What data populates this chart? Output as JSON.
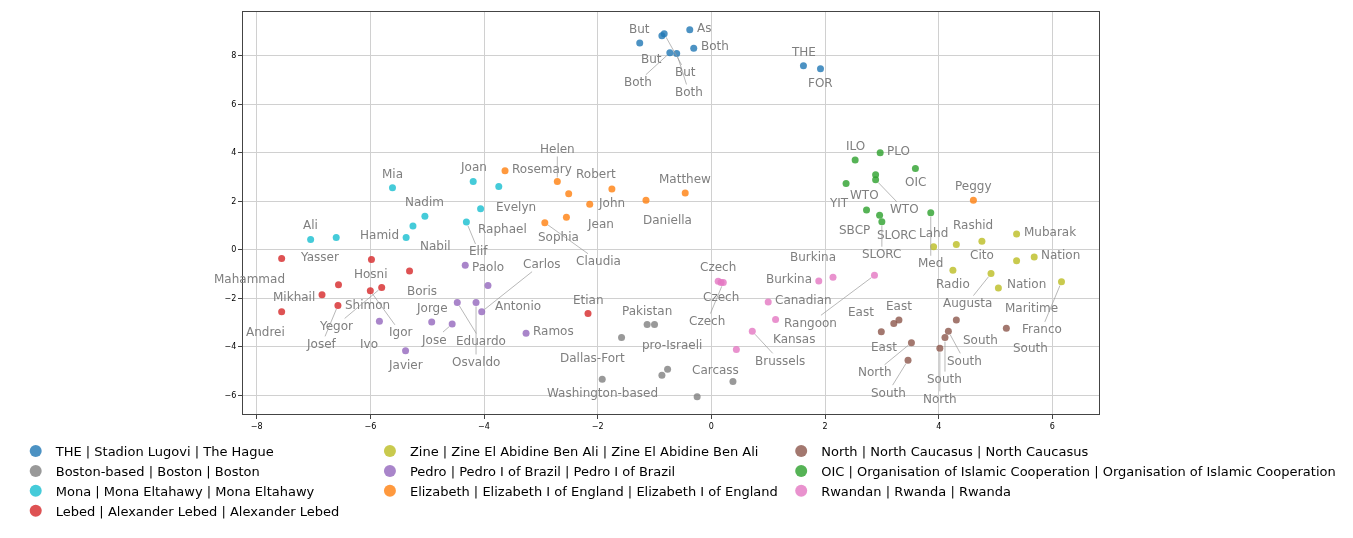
{
  "chart_data": {
    "type": "scatter",
    "xlim": [
      -8.24,
      6.82
    ],
    "ylim": [
      -6.78,
      9.8
    ],
    "xticks": [
      -8,
      -6,
      -4,
      -2,
      0,
      2,
      4,
      6
    ],
    "yticks": [
      -6,
      -4,
      -2,
      0,
      2,
      4,
      6,
      8
    ],
    "grid": true,
    "legend": "bottom",
    "marker": "circle",
    "series": [
      {
        "name": "THE | Stadion Lugovi | The Hague",
        "color": "#1f77b4",
        "x": [
          -1.26,
          -0.87,
          -0.83,
          -0.38,
          -0.73,
          -0.61,
          -0.31,
          1.62,
          1.92
        ],
        "values": [
          8.52,
          8.82,
          8.9,
          9.07,
          8.12,
          8.09,
          8.31,
          7.58,
          7.46
        ]
      },
      {
        "name": "Boston-based | Boston | Boston",
        "color": "#7f7f7f",
        "x": [
          -1.13,
          -1.0,
          -1.58,
          -1.92,
          -0.87,
          -0.77,
          0.38,
          -0.25
        ],
        "values": [
          -3.09,
          -3.09,
          -3.63,
          -5.35,
          -5.18,
          -4.93,
          -5.44,
          -6.07
        ]
      },
      {
        "name": "Mona | Mona Eltahawy | Mona Eltahawy",
        "color": "#17becf",
        "x": [
          -5.61,
          -4.19,
          -3.74,
          -4.06,
          -5.04,
          -5.25,
          -4.31,
          -5.37,
          -7.05,
          -6.6
        ],
        "values": [
          2.55,
          2.81,
          2.6,
          1.69,
          1.38,
          0.97,
          1.14,
          0.5,
          0.42,
          0.5
        ]
      },
      {
        "name": "Lebed | Alexander Lebed | Alexander Lebed",
        "color": "#d62728",
        "x": [
          -7.56,
          -5.98,
          -5.31,
          -6.56,
          -5.8,
          -6.0,
          -6.85,
          -6.57,
          -7.56,
          -2.17
        ],
        "values": [
          -0.37,
          -0.41,
          -0.88,
          -1.45,
          -1.56,
          -1.7,
          -1.86,
          -2.3,
          -2.56,
          -2.64
        ]
      },
      {
        "name": "Zine | Zine El Abidine Ben Ali | Zine El Abidine Ben Ali",
        "color": "#bcbd22",
        "x": [
          3.91,
          4.31,
          4.76,
          5.37,
          5.37,
          5.68,
          4.25,
          4.92,
          5.05,
          6.16
        ],
        "values": [
          0.12,
          0.21,
          0.35,
          0.64,
          -0.46,
          -0.3,
          -0.85,
          -0.99,
          -1.58,
          -1.33
        ]
      },
      {
        "name": "Pedro | Pedro I of Brazil | Pedro I of Brazil",
        "color": "#9467bd",
        "x": [
          -4.33,
          -3.93,
          -4.47,
          -4.14,
          -4.04,
          -5.84,
          -4.92,
          -4.56,
          -3.26,
          -5.38
        ],
        "values": [
          -0.65,
          -1.48,
          -2.18,
          -2.18,
          -2.56,
          -2.95,
          -2.99,
          -3.07,
          -3.45,
          -4.17
        ]
      },
      {
        "name": "Elizabeth | Elizabeth I of England | Elizabeth I of England",
        "color": "#ff7f0e",
        "x": [
          -3.63,
          -2.71,
          -2.51,
          -1.75,
          -2.14,
          -1.15,
          -0.46,
          -2.55,
          -2.93,
          4.61
        ],
        "values": [
          3.25,
          2.81,
          2.3,
          2.5,
          1.87,
          2.04,
          2.33,
          1.33,
          1.11,
          2.04
        ]
      },
      {
        "name": "North | North Caucasus | North Caucasus",
        "color": "#8c564b",
        "x": [
          3.3,
          3.21,
          2.99,
          4.31,
          5.19,
          4.17,
          4.11,
          3.52,
          4.02,
          3.46
        ],
        "values": [
          -2.9,
          -3.05,
          -3.39,
          -2.9,
          -3.24,
          -3.37,
          -3.63,
          -3.84,
          -4.07,
          -4.56
        ]
      },
      {
        "name": "OIC | Organisation of Islamic Cooperation | Organisation of Islamic Cooperation",
        "color": "#2ca02c",
        "x": [
          2.53,
          2.97,
          3.59,
          2.89,
          2.89,
          2.37,
          2.73,
          2.96,
          3.0,
          3.86
        ],
        "values": [
          3.7,
          3.99,
          3.35,
          3.09,
          2.88,
          2.73,
          1.63,
          1.42,
          1.15,
          1.52
        ]
      },
      {
        "name": "Rwandan | Rwanda | Rwanda",
        "color": "#e377c2",
        "x": [
          0.12,
          0.17,
          0.21,
          1.0,
          1.13,
          0.72,
          0.44,
          1.89,
          2.14,
          2.87
        ],
        "values": [
          -1.31,
          -1.36,
          -1.36,
          -2.16,
          -2.88,
          -3.37,
          -4.12,
          -1.29,
          -1.14,
          -1.06
        ]
      }
    ],
    "annotations": [
      {
        "text": "But",
        "x": -1.26,
        "y": 8.52
      },
      {
        "text": "But",
        "x": -0.87,
        "y": 8.82
      },
      {
        "text": "But",
        "x": -0.83,
        "y": 8.9
      },
      {
        "text": "As",
        "x": -0.38,
        "y": 9.07
      },
      {
        "text": "Both",
        "x": -0.73,
        "y": 8.12
      },
      {
        "text": "Both",
        "x": -0.61,
        "y": 8.09
      },
      {
        "text": "Both",
        "x": -0.31,
        "y": 8.31
      },
      {
        "text": "THE",
        "x": 1.62,
        "y": 7.58
      },
      {
        "text": "FOR",
        "x": 1.92,
        "y": 7.46
      },
      {
        "text": "Pakistan",
        "x": -1.13,
        "y": -3.09
      },
      {
        "text": "pro-Israeli",
        "x": -1.0,
        "y": -3.09
      },
      {
        "text": "Dallas-Fort",
        "x": -1.58,
        "y": -3.63
      },
      {
        "text": "Washington-based",
        "x": -1.92,
        "y": -5.35
      },
      {
        "text": "Mia",
        "x": -5.61,
        "y": 2.55
      },
      {
        "text": "Joan",
        "x": -4.19,
        "y": 2.81
      },
      {
        "text": "Evelyn",
        "x": -3.74,
        "y": 2.6
      },
      {
        "text": "Raphael",
        "x": -4.06,
        "y": 1.69
      },
      {
        "text": "Nadim",
        "x": -5.04,
        "y": 1.38
      },
      {
        "text": "Nabil",
        "x": -5.25,
        "y": 0.97
      },
      {
        "text": "Elif",
        "x": -4.31,
        "y": 1.14
      },
      {
        "text": "Hamid",
        "x": -5.37,
        "y": 0.5
      },
      {
        "text": "Ali",
        "x": -7.05,
        "y": 0.42
      },
      {
        "text": "Yasser",
        "x": -6.6,
        "y": 0.5
      },
      {
        "text": "Mahammad",
        "x": -7.56,
        "y": -0.37
      },
      {
        "text": "Hosni",
        "x": -5.98,
        "y": -0.41
      },
      {
        "text": "Boris",
        "x": -5.31,
        "y": -0.88
      },
      {
        "text": "Shimon",
        "x": -6.56,
        "y": -1.45
      },
      {
        "text": "Yegor",
        "x": -5.8,
        "y": -1.56
      },
      {
        "text": "Igor",
        "x": -6.0,
        "y": -1.7
      },
      {
        "text": "Mikhail",
        "x": -6.85,
        "y": -1.86
      },
      {
        "text": "Josef",
        "x": -6.57,
        "y": -2.3
      },
      {
        "text": "Andrei",
        "x": -7.56,
        "y": -2.56
      },
      {
        "text": "Etian",
        "x": -2.17,
        "y": -2.64
      },
      {
        "text": "Lahd",
        "x": 3.91,
        "y": 0.12
      },
      {
        "text": "Rashid",
        "x": 4.31,
        "y": 0.21
      },
      {
        "text": "Cito",
        "x": 4.76,
        "y": 0.35
      },
      {
        "text": "Mubarak",
        "x": 5.37,
        "y": 0.64
      },
      {
        "text": "Nation",
        "x": 5.37,
        "y": -0.46
      },
      {
        "text": "Nation",
        "x": 5.68,
        "y": -0.3
      },
      {
        "text": "Radio",
        "x": 4.25,
        "y": -0.85
      },
      {
        "text": "Augusta",
        "x": 4.92,
        "y": -0.99
      },
      {
        "text": "Maritime",
        "x": 5.05,
        "y": -1.58
      },
      {
        "text": "Franco",
        "x": 6.16,
        "y": -1.33
      },
      {
        "text": "Paolo",
        "x": -4.33,
        "y": -0.65
      },
      {
        "text": "Antonio",
        "x": -3.93,
        "y": -1.48
      },
      {
        "text": "Eduardo",
        "x": -4.47,
        "y": -2.18
      },
      {
        "text": "Osvaldo",
        "x": -4.14,
        "y": -2.18
      },
      {
        "text": "Carlos",
        "x": -4.04,
        "y": -2.56
      },
      {
        "text": "Ivo",
        "x": -5.84,
        "y": -2.95
      },
      {
        "text": "Jorge",
        "x": -4.92,
        "y": -2.99
      },
      {
        "text": "Jose",
        "x": -4.56,
        "y": -3.07
      },
      {
        "text": "Ramos",
        "x": -3.26,
        "y": -3.45
      },
      {
        "text": "Javier",
        "x": -5.38,
        "y": -4.17
      },
      {
        "text": "Rosemary",
        "x": -3.63,
        "y": 3.25
      },
      {
        "text": "Helen",
        "x": -2.71,
        "y": 2.81
      },
      {
        "text": "Robert",
        "x": -2.51,
        "y": 2.3
      },
      {
        "text": "John",
        "x": -1.75,
        "y": 2.5
      },
      {
        "text": "Jean",
        "x": -2.14,
        "y": 1.87
      },
      {
        "text": "Daniella",
        "x": -1.15,
        "y": 2.04
      },
      {
        "text": "Matthew",
        "x": -0.46,
        "y": 2.33
      },
      {
        "text": "Sophia",
        "x": -2.55,
        "y": 1.33
      },
      {
        "text": "Claudia",
        "x": -2.93,
        "y": 1.11
      },
      {
        "text": "Peggy",
        "x": 4.61,
        "y": 2.04
      },
      {
        "text": "East",
        "x": 3.3,
        "y": -2.9
      },
      {
        "text": "East",
        "x": 3.21,
        "y": -3.05
      },
      {
        "text": "East",
        "x": 2.99,
        "y": -3.39
      },
      {
        "text": "South",
        "x": 4.31,
        "y": -2.9
      },
      {
        "text": "South",
        "x": 5.19,
        "y": -3.24
      },
      {
        "text": "South",
        "x": 4.17,
        "y": -3.37
      },
      {
        "text": "South",
        "x": 4.11,
        "y": -3.63
      },
      {
        "text": "North",
        "x": 3.52,
        "y": -3.84
      },
      {
        "text": "North",
        "x": 4.02,
        "y": -4.07
      },
      {
        "text": "South",
        "x": 3.46,
        "y": -4.56
      },
      {
        "text": "ILO",
        "x": 2.53,
        "y": 3.7
      },
      {
        "text": "PLO",
        "x": 2.97,
        "y": 3.99
      },
      {
        "text": "OIC",
        "x": 3.59,
        "y": 3.35
      },
      {
        "text": "WTO",
        "x": 2.89,
        "y": 3.09
      },
      {
        "text": "WTO",
        "x": 2.89,
        "y": 2.88
      },
      {
        "text": "YIT",
        "x": 2.37,
        "y": 2.73
      },
      {
        "text": "SBCP",
        "x": 2.73,
        "y": 1.63
      },
      {
        "text": "SLORC",
        "x": 2.96,
        "y": 1.42
      },
      {
        "text": "SLORC",
        "x": 3.0,
        "y": 1.15
      },
      {
        "text": "Med",
        "x": 3.86,
        "y": 1.52
      },
      {
        "text": "Czech",
        "x": 0.12,
        "y": -1.31
      },
      {
        "text": "Czech",
        "x": 0.17,
        "y": -1.36
      },
      {
        "text": "Czech",
        "x": 0.21,
        "y": -1.36
      },
      {
        "text": "Canadian",
        "x": 1.0,
        "y": -2.16
      },
      {
        "text": "Kansas",
        "x": 1.13,
        "y": -2.88
      },
      {
        "text": "Brussels",
        "x": 0.72,
        "y": -3.37
      },
      {
        "text": "Carcass",
        "x": 0.44,
        "y": -4.12
      },
      {
        "text": "Burkina",
        "x": 1.89,
        "y": -1.29
      },
      {
        "text": "Burkina",
        "x": 2.14,
        "y": -1.14
      },
      {
        "text": "Rangoon",
        "x": 2.87,
        "y": -1.06
      }
    ]
  }
}
